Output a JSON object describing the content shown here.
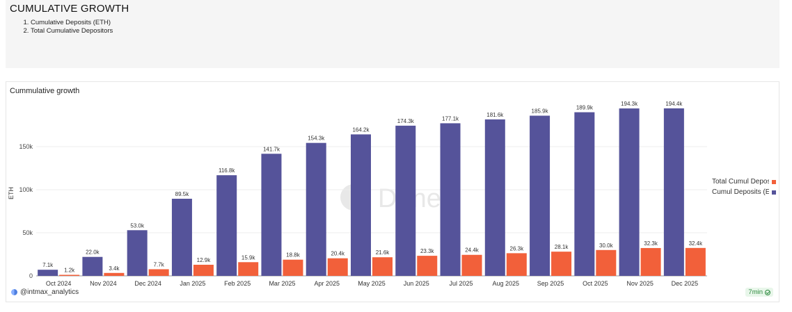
{
  "header": {
    "title": "CUMULATIVE GROWTH",
    "items": [
      "Cumulative Deposits (ETH)",
      "Total Cumulative Depositors"
    ]
  },
  "chart_panel": {
    "title": "Cummulative growth",
    "watermark": "Dune",
    "user": "@intmax_analytics",
    "age": "7min"
  },
  "chart_data": {
    "type": "bar",
    "title": "Cummulative growth",
    "ylabel": "ETH",
    "xlabel": "",
    "ylim": [
      0,
      200000
    ],
    "yticks": [
      0,
      50000,
      100000,
      150000
    ],
    "ytick_labels": [
      "0",
      "50k",
      "100k",
      "150k"
    ],
    "grid": true,
    "legend_position": "right",
    "categories": [
      "Oct 2024",
      "Nov 2024",
      "Dec 2024",
      "Jan 2025",
      "Feb 2025",
      "Mar 2025",
      "Apr 2025",
      "May 2025",
      "Jun 2025",
      "Jul 2025",
      "Aug 2025",
      "Sep 2025",
      "Oct 2025",
      "Nov 2025",
      "Dec 2025"
    ],
    "series": [
      {
        "name": "Cumul Deposits (E",
        "color": "#55539a",
        "values": [
          7100,
          22000,
          53000,
          89500,
          116800,
          141700,
          154300,
          164200,
          174300,
          177100,
          181600,
          185900,
          189900,
          194300,
          194400
        ],
        "labels": [
          "7.1k",
          "22.0k",
          "53.0k",
          "89.5k",
          "116.8k",
          "141.7k",
          "154.3k",
          "164.2k",
          "174.3k",
          "177.1k",
          "181.6k",
          "185.9k",
          "189.9k",
          "194.3k",
          "194.4k"
        ]
      },
      {
        "name": "Total Cumul Depos",
        "color": "#f2603a",
        "values": [
          1200,
          3400,
          7700,
          12900,
          15900,
          18800,
          20400,
          21600,
          23300,
          24400,
          26300,
          28100,
          30000,
          32300,
          32400
        ],
        "labels": [
          "1.2k",
          "3.4k",
          "7.7k",
          "12.9k",
          "15.9k",
          "18.8k",
          "20.4k",
          "21.6k",
          "23.3k",
          "24.4k",
          "26.3k",
          "28.1k",
          "30.0k",
          "32.3k",
          "32.4k"
        ]
      }
    ]
  }
}
